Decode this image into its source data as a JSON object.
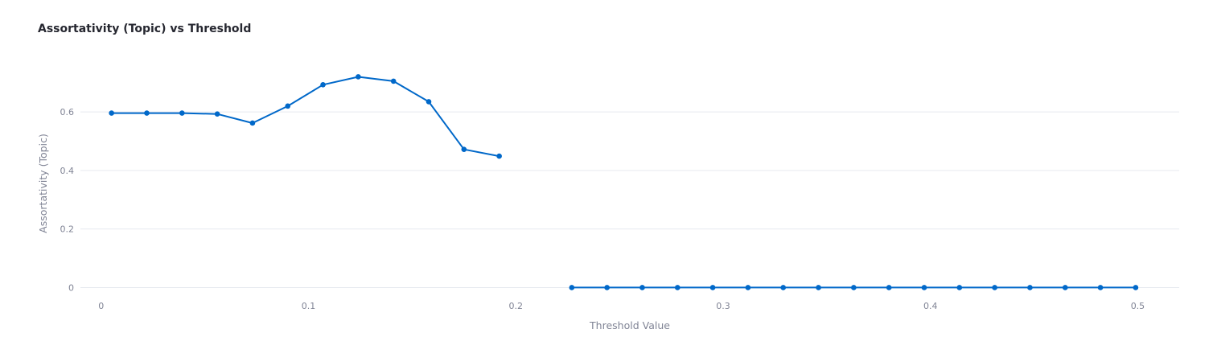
{
  "chart_data": {
    "type": "line",
    "title": "Assortativity (Topic) vs Threshold",
    "xlabel": "Threshold Value",
    "ylabel": "Assortativity (Topic)",
    "xlim": [
      -0.01,
      0.52
    ],
    "ylim": [
      -0.04,
      0.79
    ],
    "x_ticks": [
      0,
      0.1,
      0.2,
      0.3,
      0.4,
      0.5
    ],
    "x_tick_labels": [
      "0",
      "0.1",
      "0.2",
      "0.3",
      "0.4",
      "0.5"
    ],
    "y_ticks": [
      0,
      0.2,
      0.4,
      0.6
    ],
    "y_tick_labels": [
      "0",
      "0.2",
      "0.4",
      "0.6"
    ],
    "grid": "horizontal",
    "color": "#0068c9",
    "series": [
      {
        "points": [
          {
            "x": 0.005,
            "y": 0.596
          },
          {
            "x": 0.022,
            "y": 0.596
          },
          {
            "x": 0.039,
            "y": 0.596
          },
          {
            "x": 0.056,
            "y": 0.593
          },
          {
            "x": 0.073,
            "y": 0.562
          },
          {
            "x": 0.09,
            "y": 0.62
          },
          {
            "x": 0.107,
            "y": 0.693
          },
          {
            "x": 0.124,
            "y": 0.72
          },
          {
            "x": 0.141,
            "y": 0.705
          },
          {
            "x": 0.158,
            "y": 0.635
          },
          {
            "x": 0.175,
            "y": 0.472
          },
          {
            "x": 0.192,
            "y": 0.449
          }
        ]
      },
      {
        "points": [
          {
            "x": 0.227,
            "y": 0
          },
          {
            "x": 0.244,
            "y": 0
          },
          {
            "x": 0.261,
            "y": 0
          },
          {
            "x": 0.278,
            "y": 0
          },
          {
            "x": 0.295,
            "y": 0
          },
          {
            "x": 0.312,
            "y": 0
          },
          {
            "x": 0.329,
            "y": 0
          },
          {
            "x": 0.346,
            "y": 0
          },
          {
            "x": 0.363,
            "y": 0
          },
          {
            "x": 0.38,
            "y": 0
          },
          {
            "x": 0.397,
            "y": 0
          },
          {
            "x": 0.414,
            "y": 0
          },
          {
            "x": 0.431,
            "y": 0
          },
          {
            "x": 0.448,
            "y": 0
          },
          {
            "x": 0.465,
            "y": 0
          },
          {
            "x": 0.482,
            "y": 0
          },
          {
            "x": 0.499,
            "y": 0
          }
        ]
      }
    ]
  }
}
